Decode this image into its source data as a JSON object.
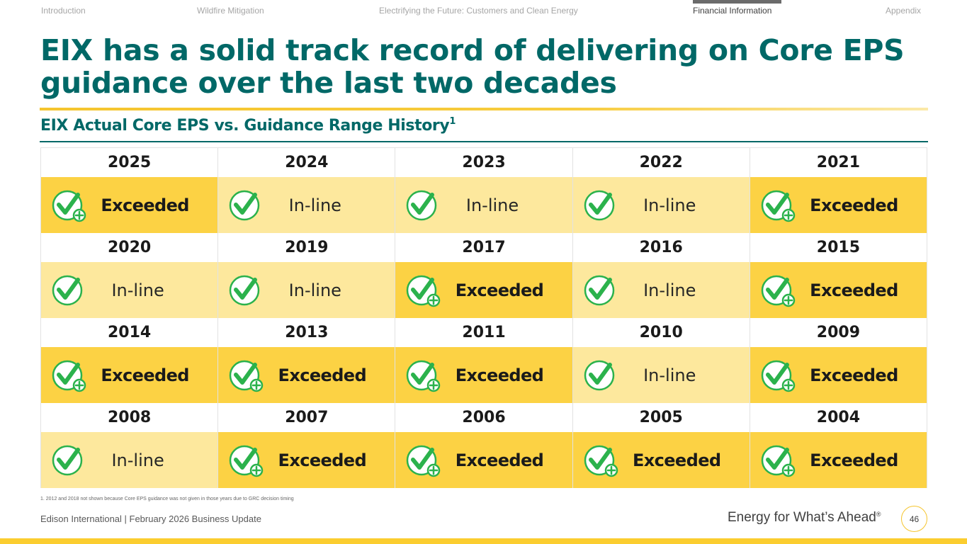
{
  "nav": {
    "items": [
      "Introduction",
      "Wildfire Mitigation",
      "Electrifying the Future: Customers and Clean Energy",
      "Financial Information",
      "Appendix"
    ],
    "active": "Financial Information"
  },
  "title": "EIX has a solid track record of delivering on Core EPS guidance over the last two decades",
  "subtitle": {
    "text": "EIX Actual Core EPS vs. Guidance Range History",
    "superscript": "1"
  },
  "records": [
    [
      {
        "year": "2025",
        "status": "exceeded",
        "label": "Exceeded"
      },
      {
        "year": "2024",
        "status": "inline",
        "label": "In-line"
      },
      {
        "year": "2023",
        "status": "inline",
        "label": "In-line"
      },
      {
        "year": "2022",
        "status": "inline",
        "label": "In-line"
      },
      {
        "year": "2021",
        "status": "exceeded",
        "label": "Exceeded"
      }
    ],
    [
      {
        "year": "2020",
        "status": "inline",
        "label": "In-line"
      },
      {
        "year": "2019",
        "status": "inline",
        "label": "In-line"
      },
      {
        "year": "2017",
        "status": "exceeded",
        "label": "Exceeded"
      },
      {
        "year": "2016",
        "status": "inline",
        "label": "In-line"
      },
      {
        "year": "2015",
        "status": "exceeded",
        "label": "Exceeded"
      }
    ],
    [
      {
        "year": "2014",
        "status": "exceeded",
        "label": "Exceeded"
      },
      {
        "year": "2013",
        "status": "exceeded",
        "label": "Exceeded"
      },
      {
        "year": "2011",
        "status": "exceeded",
        "label": "Exceeded"
      },
      {
        "year": "2010",
        "status": "inline",
        "label": "In-line"
      },
      {
        "year": "2009",
        "status": "exceeded",
        "label": "Exceeded"
      }
    ],
    [
      {
        "year": "2008",
        "status": "inline",
        "label": "In-line"
      },
      {
        "year": "2007",
        "status": "exceeded",
        "label": "Exceeded"
      },
      {
        "year": "2006",
        "status": "exceeded",
        "label": "Exceeded"
      },
      {
        "year": "2005",
        "status": "exceeded",
        "label": "Exceeded"
      },
      {
        "year": "2004",
        "status": "exceeded",
        "label": "Exceeded"
      }
    ]
  ],
  "icons": {
    "inline": "check-circle-icon",
    "exceeded": "check-circle-plus-icon"
  },
  "colors": {
    "teal": "#006867",
    "exceeded_fill": "#fcd244",
    "inline_fill": "#fde89d",
    "check_green": "#2bb24c",
    "gold": "#fbcd2f"
  },
  "footnote": "1.  2012 and 2018 not shown because Core EPS guidance was not given in those years due to GRC decision timing",
  "footer": {
    "company_text": "Edison International |  February 2026 Business Update",
    "tagline": "Energy for What’s Ahead",
    "tagline_mark": "®",
    "page_number": "46"
  }
}
